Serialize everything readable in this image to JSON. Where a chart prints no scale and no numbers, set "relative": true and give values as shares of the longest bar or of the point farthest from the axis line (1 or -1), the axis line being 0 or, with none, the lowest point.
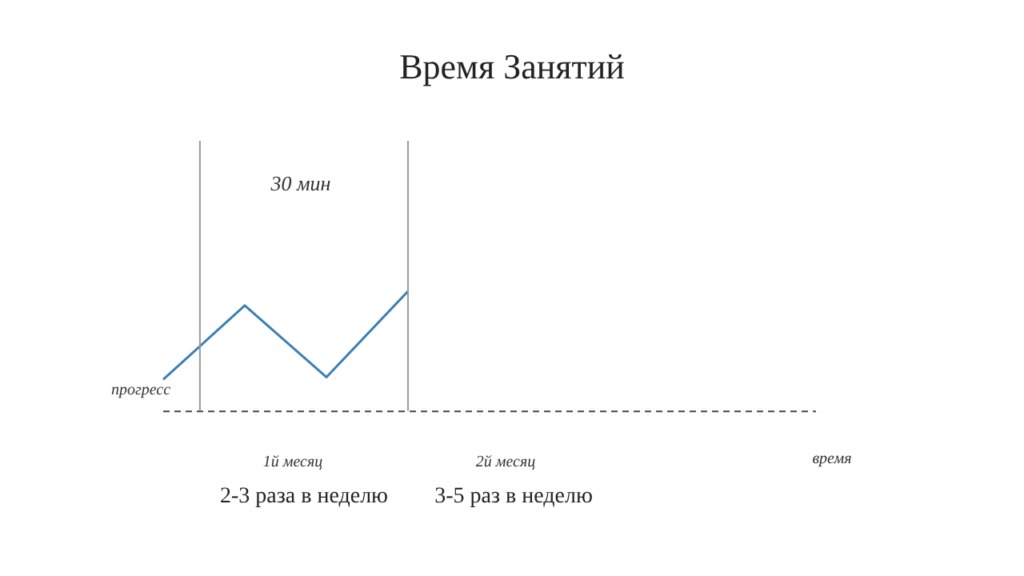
{
  "chart_data": {
    "type": "line",
    "title": "Время Занятий",
    "xlabel": "время",
    "ylabel": "прогресс",
    "relative": true,
    "categories": [
      null,
      null,
      null,
      null,
      null,
      null,
      null,
      null,
      null
    ],
    "series": [
      {
        "color": "#3b7fb3",
        "values": [
          0.26,
          0.88,
          0.28,
          1,
          null,
          null,
          null,
          null,
          null
        ]
      }
    ],
    "annotations": [
      "30 мин",
      "1й месяц",
      "2й месяц",
      "2-3 раза в неделю",
      "3-5 раз в неделю"
    ],
    "legend": false,
    "grid": false,
    "marker": "none",
    "line_style": "solid"
  }
}
